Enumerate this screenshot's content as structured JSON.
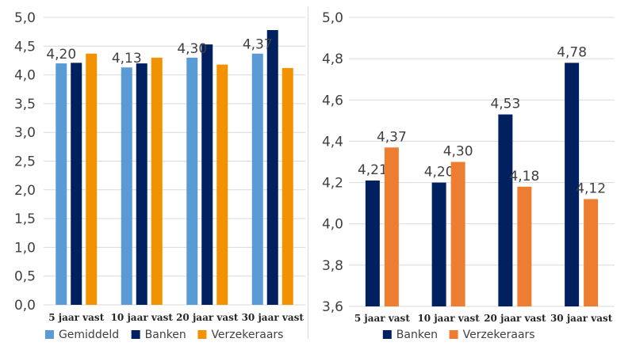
{
  "chart_data": [
    {
      "type": "bar",
      "categories": [
        "5 jaar vast",
        "10 jaar vast",
        "20 jaar vast",
        "30 jaar vast"
      ],
      "series": [
        {
          "name": "Gemiddeld",
          "color": "#5b9bd5",
          "values": [
            4.2,
            4.13,
            4.3,
            4.37
          ]
        },
        {
          "name": "Banken",
          "color": "#002060",
          "values": [
            4.21,
            4.2,
            4.53,
            4.78
          ]
        },
        {
          "name": "Verzekeraars",
          "color": "#f39200",
          "values": [
            4.37,
            4.3,
            4.18,
            4.12
          ]
        }
      ],
      "data_labels": {
        "series": "Gemiddeld",
        "texts": [
          "4,20",
          "4,13",
          "4,30",
          "4,37"
        ]
      },
      "y_ticks": [
        "0,0",
        "0,5",
        "1,0",
        "1,5",
        "2,0",
        "2,5",
        "3,0",
        "3,5",
        "4,0",
        "4,5",
        "5,0"
      ],
      "ylim": [
        0,
        5
      ],
      "grid": true,
      "legend": "bottom",
      "title": "",
      "xlabel": "",
      "ylabel": ""
    },
    {
      "type": "bar",
      "categories": [
        "5 jaar vast",
        "10 jaar vast",
        "20 jaar vast",
        "30 jaar vast"
      ],
      "series": [
        {
          "name": "Banken",
          "color": "#002060",
          "values": [
            4.21,
            4.2,
            4.53,
            4.78
          ],
          "labels": [
            "4,21",
            "4,20",
            "4,53",
            "4,78"
          ]
        },
        {
          "name": "Verzekeraars",
          "color": "#ed7d31",
          "values": [
            4.37,
            4.3,
            4.18,
            4.12
          ],
          "labels": [
            "4,37",
            "4,30",
            "4,18",
            "4,12"
          ]
        }
      ],
      "y_ticks": [
        "3,6",
        "3,8",
        "4,0",
        "4,2",
        "4,4",
        "4,6",
        "4,8",
        "5,0"
      ],
      "ylim": [
        3.6,
        5.0
      ],
      "grid": true,
      "legend": "bottom",
      "title": "",
      "xlabel": "",
      "ylabel": ""
    }
  ]
}
